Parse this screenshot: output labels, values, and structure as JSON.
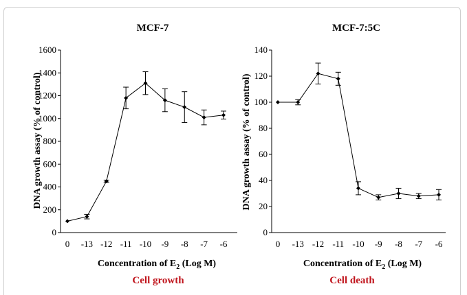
{
  "chart_data": [
    {
      "type": "line",
      "title": "MCF-7",
      "ylabel": "DNA growth assay (% of control)",
      "xlabel_parts": [
        "Concentration  of  E",
        "2",
        " (Log M)"
      ],
      "caption": "Cell growth",
      "categories": [
        "0",
        "-13",
        "-12",
        "-11",
        "-10",
        "-9",
        "-8",
        "-7",
        "-6"
      ],
      "values": [
        100,
        140,
        450,
        1180,
        1310,
        1160,
        1100,
        1010,
        1030
      ],
      "errors": [
        0,
        20,
        10,
        95,
        100,
        100,
        135,
        65,
        35
      ],
      "ylim": [
        0,
        1600
      ],
      "yticks": [
        0,
        200,
        400,
        600,
        800,
        1000,
        1200,
        1400,
        1600
      ],
      "grid": false
    },
    {
      "type": "line",
      "title": "MCF-7:5C",
      "ylabel": "DNA growth assay (% of control)",
      "xlabel_parts": [
        "Concentration  of  E",
        "2",
        " (Log M)"
      ],
      "caption": "Cell death",
      "categories": [
        "0",
        "-13",
        "-12",
        "-11",
        "-10",
        "-9",
        "-8",
        "-7",
        "-6"
      ],
      "values": [
        100,
        100,
        122,
        118,
        34,
        27,
        30,
        28,
        29
      ],
      "errors": [
        0,
        2,
        8,
        5,
        5,
        2,
        4,
        2,
        4
      ],
      "ylim": [
        0,
        140
      ],
      "yticks": [
        0,
        20,
        40,
        60,
        80,
        100,
        120,
        140
      ],
      "grid": false
    }
  ]
}
